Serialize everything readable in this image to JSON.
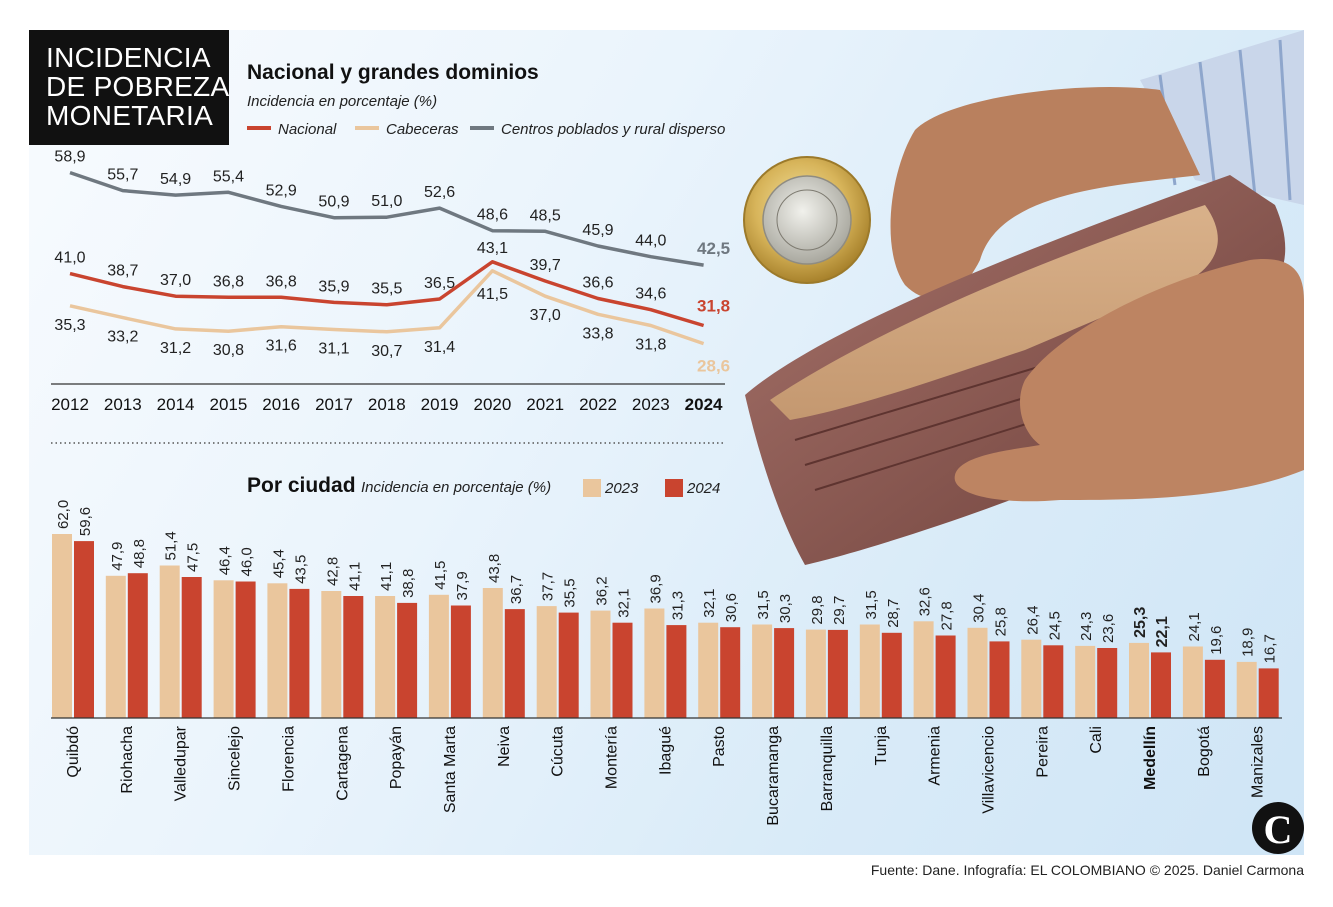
{
  "badge": [
    "INCIDENCIA",
    "DE POBREZA",
    "MONETARIA"
  ],
  "source": "Fuente: Dane. Infografía: EL COLOMBIANO © 2025. Daniel Carmona",
  "logo_letter": "C",
  "colors": {
    "nacional": "#c9442f",
    "cabeceras": "#eac69d",
    "rural": "#6f7880",
    "bar2023": "#eac69d",
    "bar2024": "#c9442f"
  },
  "chart_data": [
    {
      "type": "line",
      "title": "Nacional y grandes dominios",
      "subtitle": "Incidencia en porcentaje (%)",
      "x": [
        "2012",
        "2013",
        "2014",
        "2015",
        "2016",
        "2017",
        "2018",
        "2019",
        "2020",
        "2021",
        "2022",
        "2023",
        "2024"
      ],
      "ylim": [
        28,
        59
      ],
      "series": [
        {
          "name": "Nacional",
          "key": "nacional",
          "values": [
            41.0,
            38.7,
            37.0,
            36.8,
            36.8,
            35.9,
            35.5,
            36.5,
            43.1,
            39.7,
            36.6,
            34.6,
            31.8
          ],
          "labels": [
            "41,0",
            "38,7",
            "37,0",
            "36,8",
            "36,8",
            "35,9",
            "35,5",
            "36,5",
            "43,1",
            "39,7",
            "36,6",
            "34,6",
            "31,8"
          ]
        },
        {
          "name": "Cabeceras",
          "key": "cabeceras",
          "values": [
            35.3,
            33.2,
            31.2,
            30.8,
            31.6,
            31.1,
            30.7,
            31.4,
            41.5,
            37.0,
            33.8,
            31.8,
            28.6
          ],
          "labels": [
            "35,3",
            "33,2",
            "31,2",
            "30,8",
            "31,6",
            "31,1",
            "30,7",
            "31,4",
            "41,5",
            "37,0",
            "33,8",
            "31,8",
            "28,6"
          ]
        },
        {
          "name": "Centros poblados y rural disperso",
          "key": "rural",
          "values": [
            58.9,
            55.7,
            54.9,
            55.4,
            52.9,
            50.9,
            51.0,
            52.6,
            48.6,
            48.5,
            45.9,
            44.0,
            42.5
          ],
          "labels": [
            "58,9",
            "55,7",
            "54,9",
            "55,4",
            "52,9",
            "50,9",
            "51,0",
            "52,6",
            "48,6",
            "48,5",
            "45,9",
            "44,0",
            "42,5"
          ]
        }
      ]
    },
    {
      "type": "bar",
      "title": "Por ciudad",
      "subtitle": "Incidencia en porcentaje (%)",
      "categories": [
        "Quibdó",
        "Riohacha",
        "Valledupar",
        "Sincelejo",
        "Florencia",
        "Cartagena",
        "Popayán",
        "Santa Marta",
        "Neiva",
        "Cúcuta",
        "Montería",
        "Ibagué",
        "Pasto",
        "Bucaramanga",
        "Barranquilla",
        "Tunja",
        "Armenia",
        "Villavicencio",
        "Pereira",
        "Cali",
        "Medellín",
        "Bogotá",
        "Manizales"
      ],
      "highlight": "Medellín",
      "ylim": [
        0,
        62
      ],
      "series": [
        {
          "name": "2023",
          "key": "bar2023",
          "values": [
            62.0,
            47.9,
            51.4,
            46.4,
            45.4,
            42.8,
            41.1,
            41.5,
            43.8,
            37.7,
            36.2,
            36.9,
            32.1,
            31.5,
            29.8,
            31.5,
            32.6,
            30.4,
            26.4,
            24.3,
            25.3,
            24.1,
            18.9
          ],
          "labels": [
            "62,0",
            "47,9",
            "51,4",
            "46,4",
            "45,4",
            "42,8",
            "41,1",
            "41,5",
            "43,8",
            "37,7",
            "36,2",
            "36,9",
            "32,1",
            "31,5",
            "29,8",
            "31,5",
            "32,6",
            "30,4",
            "26,4",
            "24,3",
            "25,3",
            "24,1",
            "18,9"
          ]
        },
        {
          "name": "2024",
          "key": "bar2024",
          "values": [
            59.6,
            48.8,
            47.5,
            46.0,
            43.5,
            41.1,
            38.8,
            37.9,
            36.7,
            35.5,
            32.1,
            31.3,
            30.6,
            30.3,
            29.7,
            28.7,
            27.8,
            25.8,
            24.5,
            23.6,
            22.1,
            19.6,
            16.7
          ],
          "labels": [
            "59,6",
            "48,8",
            "47,5",
            "46,0",
            "43,5",
            "41,1",
            "38,8",
            "37,9",
            "36,7",
            "35,5",
            "32,1",
            "31,3",
            "30,6",
            "30,3",
            "29,7",
            "28,7",
            "27,8",
            "25,8",
            "24,5",
            "23,6",
            "22,1",
            "19,6",
            "16,7"
          ]
        }
      ]
    }
  ]
}
